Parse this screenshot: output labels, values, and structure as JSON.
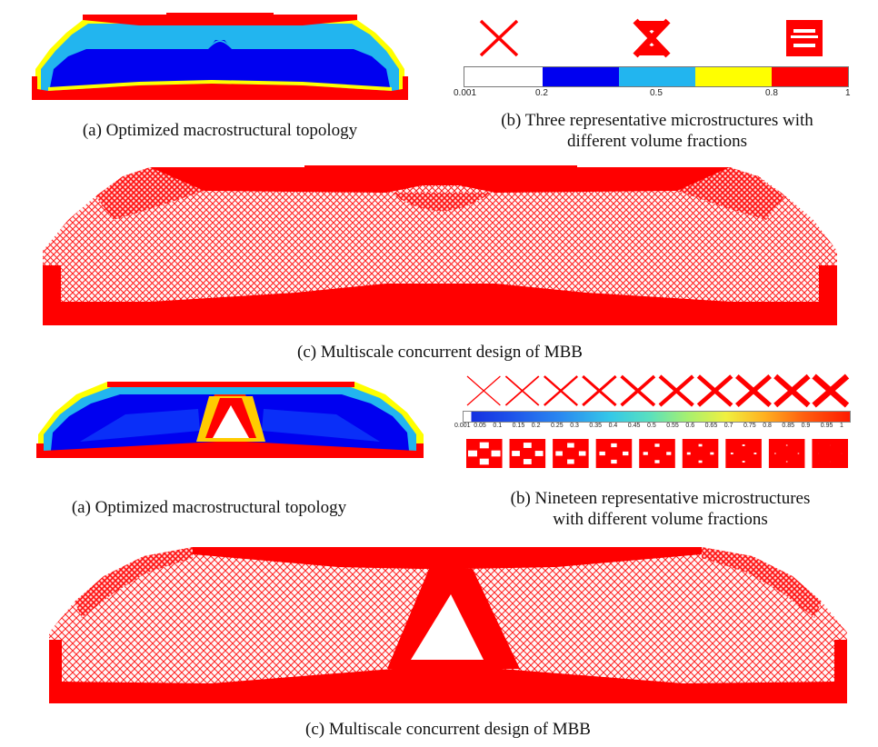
{
  "colors": {
    "red": "#ff0000",
    "yellow": "#ffff00",
    "cyan": "#22b5ef",
    "blue": "#0000f0",
    "darkblue": "#0000c8",
    "white": "#ffffff",
    "mesh": "#ff2a2a"
  },
  "figure1": {
    "caption_a": "(a) Optimized macrostructural topology",
    "caption_b_line1": "(b) Three representative microstructures with",
    "caption_b_line2": "different volume fractions",
    "caption_c": "(c) Multiscale concurrent design of MBB",
    "colorbar_ticks": [
      "0.001",
      "0.2",
      "0.5",
      "0.8",
      "1"
    ],
    "colorbar_segments": [
      "blue",
      "cyan",
      "yellow",
      "red"
    ],
    "micro_count": 3
  },
  "figure2": {
    "caption_a": "(a) Optimized macrostructural topology",
    "caption_b_line1": "(b) Nineteen representative microstructures",
    "caption_b_line2": "with different volume fractions",
    "caption_c": "(c) Multiscale concurrent design of MBB",
    "colorbar_ticks": [
      "0.001",
      "0.05",
      "0.1",
      "0.15",
      "0.2",
      "0.25",
      "0.3",
      "0.35",
      "0.4",
      "0.45",
      "0.5",
      "0.55",
      "0.6",
      "0.65",
      "0.7",
      "0.75",
      "0.8",
      "0.85",
      "0.9",
      "0.95",
      "1"
    ],
    "micro_count_top": 10,
    "micro_count_bottom": 9
  }
}
